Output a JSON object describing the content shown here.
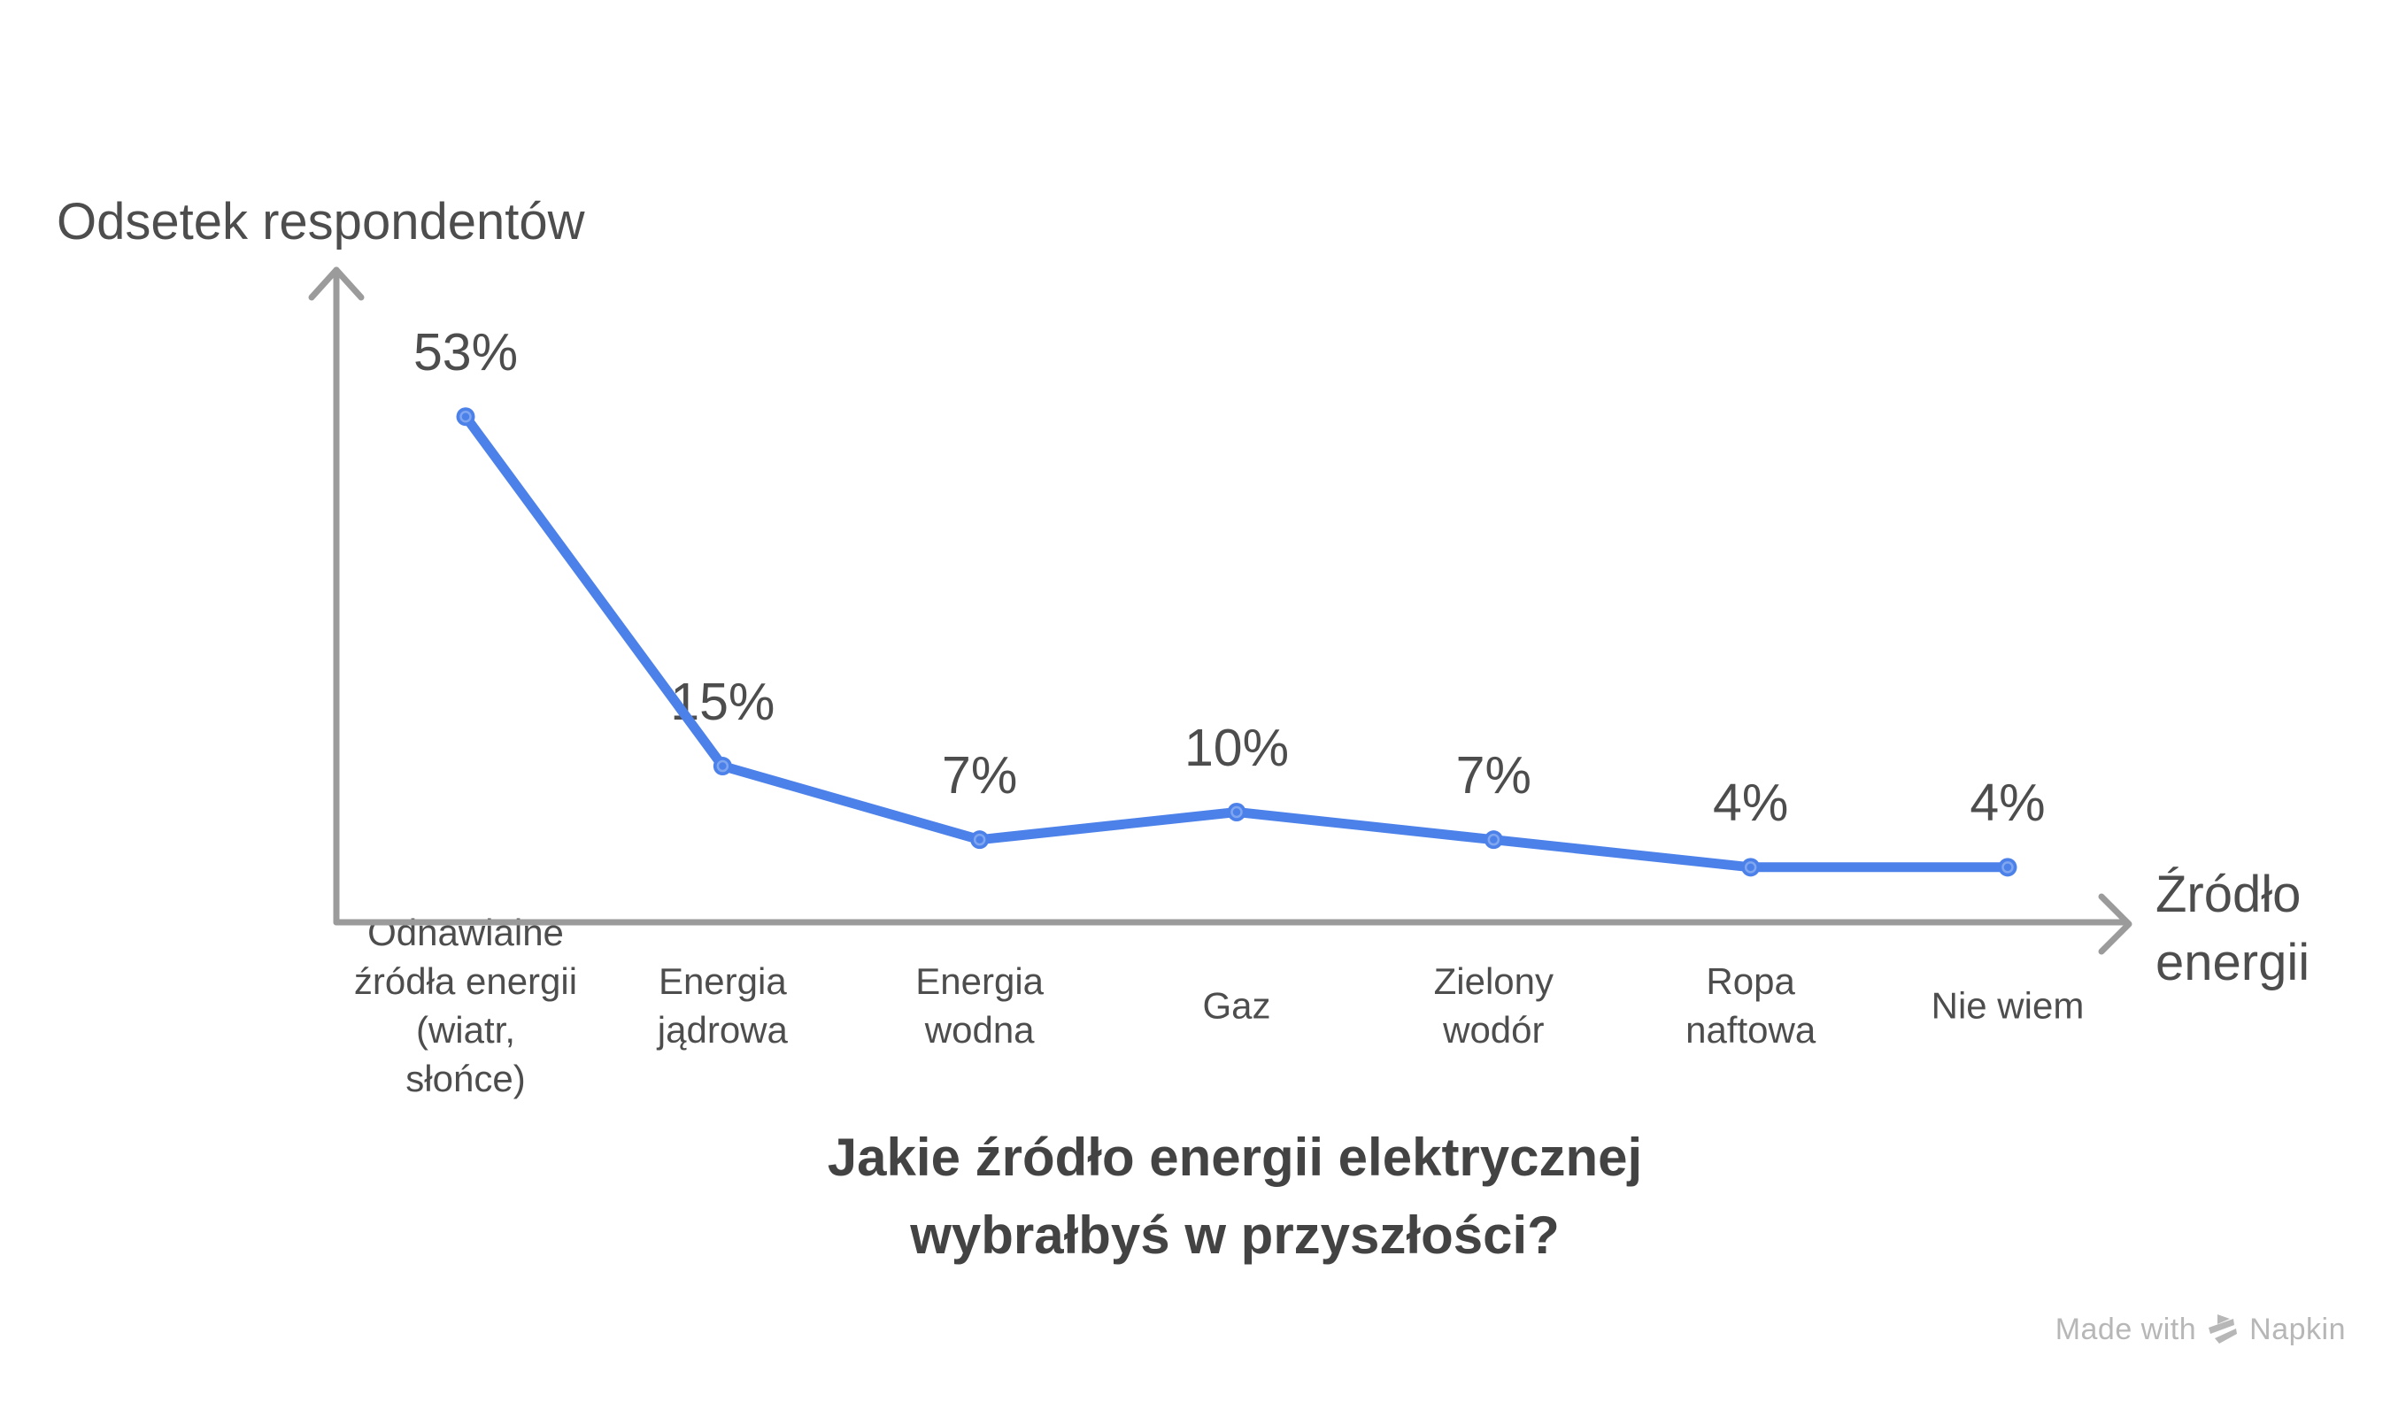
{
  "page": {
    "background": "#ffffff"
  },
  "colors": {
    "accent_blue": "#4d81ea",
    "marker_ring": "#7fa6ef",
    "axis_gray": "#9b9b9b",
    "text_gray": "#4d4d4d",
    "title_gray": "#434343",
    "watermark_gray": "#b7b7b7"
  },
  "watermark": {
    "prefix": "Made with",
    "brand": "Napkin"
  },
  "chart_data": {
    "type": "line",
    "title": "Jakie źródło energii elektrycznej\nwybrałbyś w przyszłości?",
    "xlabel": "Źródło energii",
    "ylabel": "Odsetek respondentów",
    "categories": [
      "Odnawialne\nźródła energii\n(wiatr,\nsłońce)",
      "Energia\njądrowa",
      "Energia\nwodna",
      "Gaz",
      "Zielony\nwodór",
      "Ropa\nnaftowa",
      "Nie wiem"
    ],
    "values": [
      53,
      15,
      7,
      10,
      7,
      4,
      4
    ],
    "data_labels": [
      "53%",
      "15%",
      "7%",
      "10%",
      "7%",
      "4%",
      "4%"
    ],
    "unit": "%",
    "ylim": [
      0,
      60
    ],
    "grid": false,
    "legend": null,
    "axis_arrows": true,
    "marker": "circle"
  }
}
